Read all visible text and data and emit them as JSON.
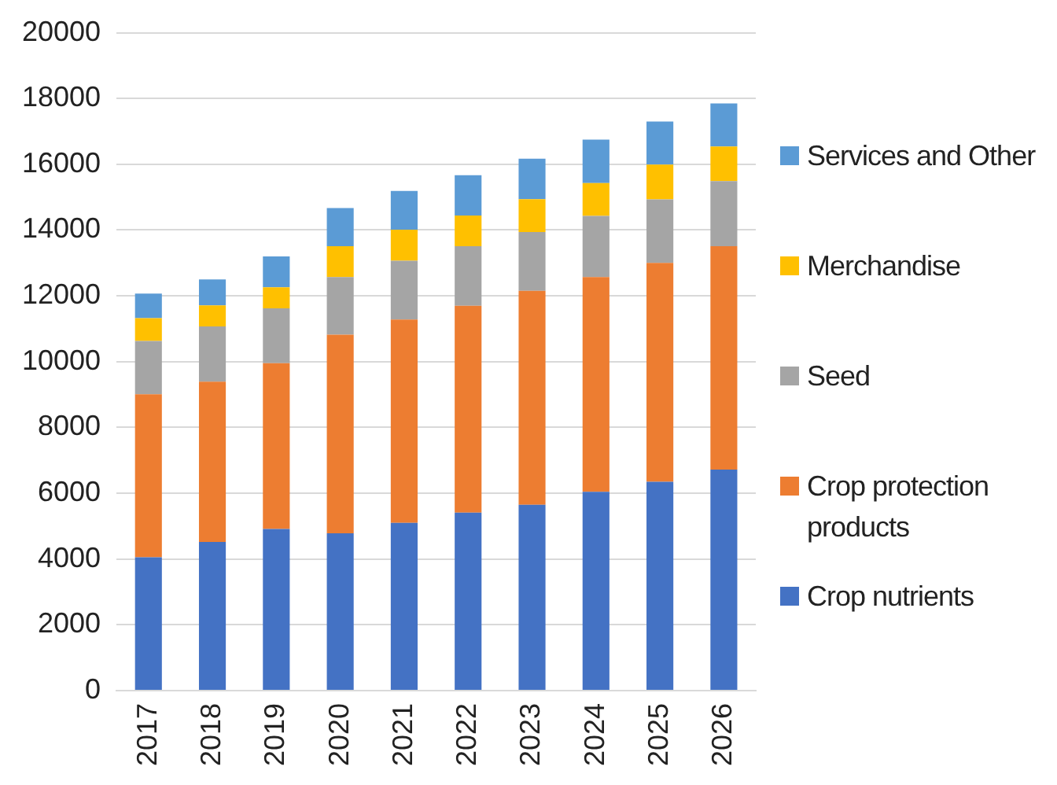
{
  "chart_data": {
    "type": "bar",
    "stacked": true,
    "categories": [
      "2017",
      "2018",
      "2019",
      "2020",
      "2021",
      "2022",
      "2023",
      "2024",
      "2025",
      "2026"
    ],
    "series": [
      {
        "name": "Crop nutrients",
        "color": "#4472c4",
        "values": [
          4050,
          4520,
          4910,
          4780,
          5100,
          5410,
          5650,
          6040,
          6350,
          6720
        ]
      },
      {
        "name": "Crop protection products",
        "color": "#ed7d31",
        "values": [
          4960,
          4870,
          5040,
          6040,
          6180,
          6290,
          6500,
          6530,
          6650,
          6790
        ]
      },
      {
        "name": "Seed",
        "color": "#a5a5a5",
        "values": [
          1620,
          1680,
          1670,
          1750,
          1790,
          1810,
          1790,
          1860,
          1930,
          1980
        ]
      },
      {
        "name": "Merchandise",
        "color": "#ffc000",
        "values": [
          690,
          640,
          640,
          940,
          940,
          930,
          1000,
          1000,
          1060,
          1050
        ]
      },
      {
        "name": "Services and Other",
        "color": "#5b9bd5",
        "values": [
          750,
          790,
          940,
          1160,
          1180,
          1230,
          1230,
          1320,
          1310,
          1310
        ]
      }
    ],
    "ylim": [
      0,
      20000
    ],
    "yticks": [
      0,
      2000,
      4000,
      6000,
      8000,
      10000,
      12000,
      14000,
      16000,
      18000,
      20000
    ],
    "grid": "y",
    "legend": "right"
  }
}
